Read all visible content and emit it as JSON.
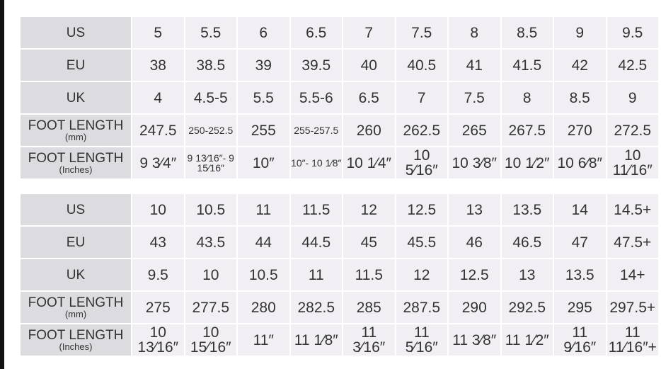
{
  "tables": [
    {
      "rows": [
        {
          "label": "US",
          "values": [
            "5",
            "5.5",
            "6",
            "6.5",
            "7",
            "7.5",
            "8",
            "8.5",
            "9",
            "9.5"
          ]
        },
        {
          "label": "EU",
          "values": [
            "38",
            "38.5",
            "39",
            "39.5",
            "40",
            "40.5",
            "41",
            "41.5",
            "42",
            "42.5"
          ]
        },
        {
          "label": "UK",
          "values": [
            "4",
            "4.5-5",
            "5.5",
            "5.5-6",
            "6.5",
            "7",
            "7.5",
            "8",
            "8.5",
            "9"
          ]
        },
        {
          "label": "FOOT LENGTH",
          "unit": "(mm)",
          "values": [
            "247.5",
            "250-252.5",
            "255",
            "255-257.5",
            "260",
            "262.5",
            "265",
            "267.5",
            "270",
            "272.5"
          ]
        },
        {
          "label": "FOOT LENGTH",
          "unit": "(Inches)",
          "values": [
            "9 3⁄4″",
            "9 13⁄16″- 9 15⁄16″",
            "10″",
            "10″- 10 1⁄8″",
            "10 1⁄4″",
            "10 5⁄16″",
            "10 3⁄8″",
            "10 1⁄2″",
            "10 6⁄8″",
            "10 11⁄16″"
          ]
        }
      ]
    },
    {
      "rows": [
        {
          "label": "US",
          "values": [
            "10",
            "10.5",
            "11",
            "11.5",
            "12",
            "12.5",
            "13",
            "13.5",
            "14",
            "14.5+"
          ]
        },
        {
          "label": "EU",
          "values": [
            "43",
            "43.5",
            "44",
            "44.5",
            "45",
            "45.5",
            "46",
            "46.5",
            "47",
            "47.5+"
          ]
        },
        {
          "label": "UK",
          "values": [
            "9.5",
            "10",
            "10.5",
            "11",
            "11.5",
            "12",
            "12.5",
            "13",
            "13.5",
            "14+"
          ]
        },
        {
          "label": "FOOT LENGTH",
          "unit": "(mm)",
          "values": [
            "275",
            "277.5",
            "280",
            "282.5",
            "285",
            "287.5",
            "290",
            "292.5",
            "295",
            "297.5+"
          ]
        },
        {
          "label": "FOOT LENGTH",
          "unit": "(Inches)",
          "values": [
            "10 13⁄16″",
            "10 15⁄16″",
            "11″",
            "11 1⁄8″",
            "11 3⁄16″",
            "11 5⁄16″",
            "11 3⁄8″",
            "11 1⁄2″",
            "11 9⁄16″",
            "11 11⁄16″+"
          ]
        }
      ]
    }
  ]
}
